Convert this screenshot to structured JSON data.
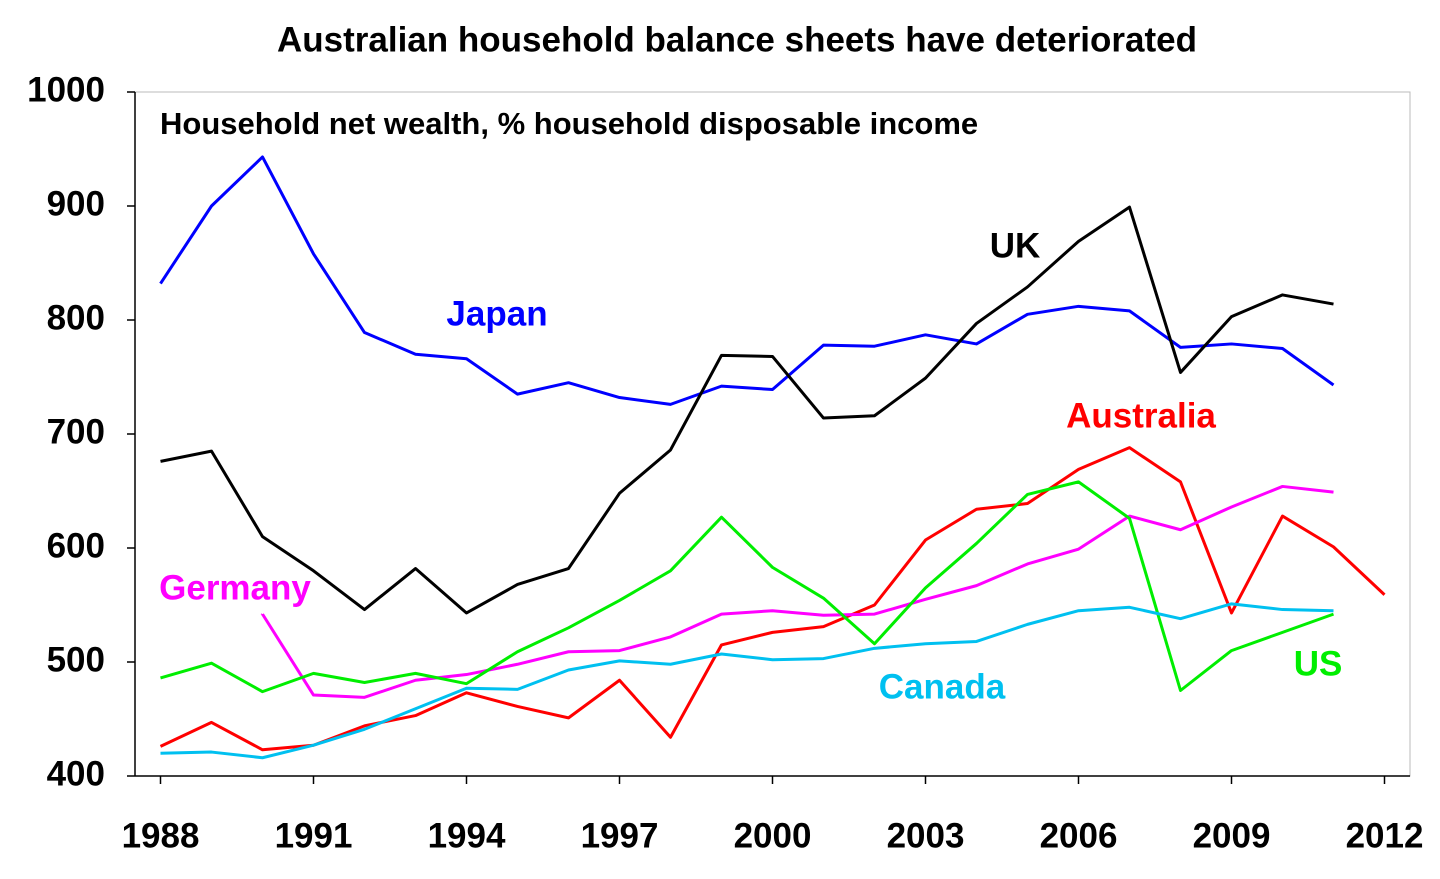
{
  "chart_data": {
    "type": "line",
    "title": "Australian household balance sheets have deteriorated",
    "subtitle": "Household net wealth, % household disposable income",
    "x": [
      1988,
      1989,
      1990,
      1991,
      1992,
      1993,
      1994,
      1995,
      1996,
      1997,
      1998,
      1999,
      2000,
      2001,
      2002,
      2003,
      2004,
      2005,
      2006,
      2007,
      2008,
      2009,
      2010,
      2011,
      2012
    ],
    "xlim": [
      1987.5,
      2012.5
    ],
    "xticks": [
      1988,
      1991,
      1994,
      1997,
      2000,
      2003,
      2006,
      2009,
      2012
    ],
    "ylim": [
      400,
      1000
    ],
    "yticks": [
      400,
      500,
      600,
      700,
      800,
      900,
      1000
    ],
    "series": [
      {
        "name": "Japan",
        "color": "#0000ff",
        "values": [
          832,
          900,
          943,
          858,
          789,
          770,
          766,
          735,
          745,
          732,
          726,
          742,
          739,
          778,
          777,
          787,
          779,
          805,
          812,
          808,
          776,
          779,
          775,
          743,
          null
        ]
      },
      {
        "name": "UK",
        "color": "#000000",
        "values": [
          676,
          685,
          610,
          580,
          546,
          582,
          543,
          568,
          582,
          648,
          686,
          769,
          768,
          714,
          716,
          749,
          797,
          829,
          869,
          899,
          754,
          803,
          822,
          814,
          null
        ]
      },
      {
        "name": "Australia",
        "color": "#ff0000",
        "values": [
          426,
          447,
          423,
          427,
          444,
          453,
          473,
          461,
          451,
          484,
          434,
          515,
          526,
          531,
          550,
          607,
          634,
          639,
          669,
          688,
          658,
          543,
          628,
          601,
          559
        ]
      },
      {
        "name": "Germany",
        "color": "#ff00ff",
        "values": [
          null,
          null,
          542,
          471,
          469,
          484,
          489,
          498,
          509,
          510,
          522,
          542,
          545,
          541,
          542,
          555,
          567,
          586,
          599,
          628,
          616,
          636,
          654,
          649,
          null
        ]
      },
      {
        "name": "US",
        "color": "#00ee00",
        "values": [
          486,
          499,
          474,
          490,
          482,
          490,
          481,
          509,
          530,
          554,
          580,
          627,
          583,
          556,
          516,
          565,
          604,
          647,
          658,
          626,
          475,
          510,
          526,
          542,
          null
        ]
      },
      {
        "name": "Canada",
        "color": "#00c0f0",
        "values": [
          420,
          421,
          416,
          427,
          441,
          459,
          477,
          476,
          493,
          501,
          498,
          507,
          502,
          503,
          512,
          516,
          518,
          533,
          545,
          548,
          538,
          551,
          546,
          545,
          null
        ]
      }
    ]
  }
}
